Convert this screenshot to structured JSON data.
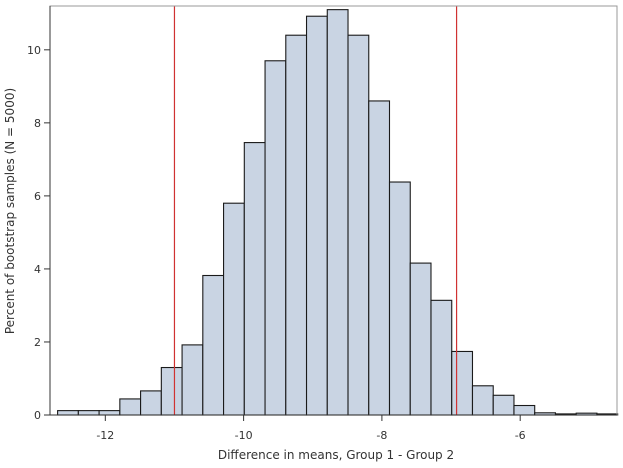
{
  "chart_data": {
    "type": "bar",
    "subtype": "histogram",
    "title": "",
    "xlabel": "Difference in means, Group 1 - Group 2",
    "ylabel": "Percent of bootstrap samples (N = 5000)",
    "bin_width": 0.3,
    "bin_centers": [
      -12.54,
      -12.24,
      -11.94,
      -11.64,
      -11.34,
      -11.04,
      -10.74,
      -10.44,
      -10.14,
      -9.84,
      -9.54,
      -9.24,
      -8.94,
      -8.64,
      -8.34,
      -8.04,
      -7.74,
      -7.44,
      -7.14,
      -6.84,
      -6.54,
      -6.24,
      -5.94,
      -5.64,
      -5.34,
      -5.04,
      -4.74
    ],
    "values": [
      0.12,
      0.12,
      0.12,
      0.44,
      0.66,
      1.3,
      1.92,
      3.82,
      5.8,
      7.46,
      9.7,
      10.4,
      10.92,
      11.1,
      10.4,
      8.6,
      6.38,
      4.16,
      3.14,
      1.74,
      0.8,
      0.54,
      0.26,
      0.06,
      0.03,
      0.05,
      0.03
    ],
    "xlim": [
      -12.8,
      -4.6
    ],
    "ylim": [
      0,
      11.2
    ],
    "xticks": [
      -12,
      -10,
      -8,
      -6
    ],
    "yticks": [
      0,
      2,
      4,
      6,
      8,
      10
    ],
    "reference_lines_x": [
      -11.0,
      -6.92
    ],
    "grid": false,
    "legend": "none",
    "colors": {
      "bar_fill": "#c9d4e3",
      "bar_stroke": "#1a1a1a",
      "reference_line": "#d03232",
      "frame": "#999999"
    }
  }
}
